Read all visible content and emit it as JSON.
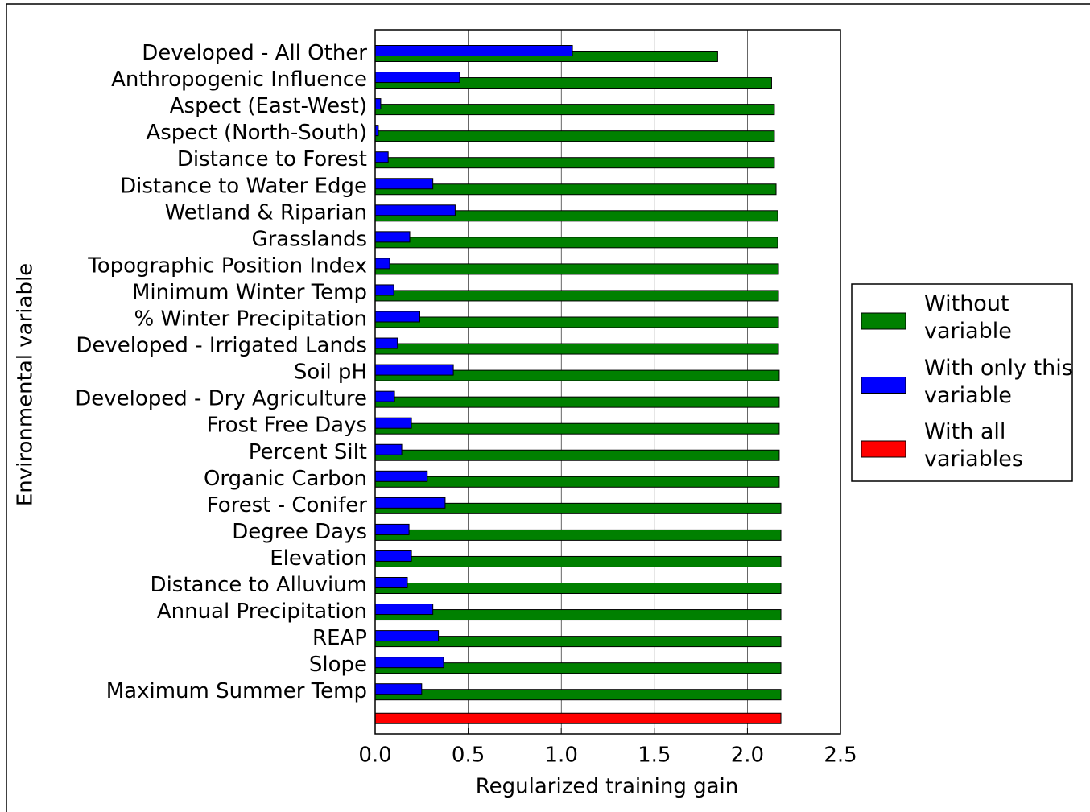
{
  "chart_data": {
    "type": "barh",
    "xlabel": "Regularized training gain",
    "ylabel": "Environmental variable",
    "categories": [
      "Developed - All Other",
      "Anthropogenic Influence",
      "Aspect (East-West)",
      "Aspect (North-South)",
      "Distance to Forest",
      "Distance to Water Edge",
      "Wetland & Riparian",
      "Grasslands",
      "Topographic Position Index",
      "Minimum Winter Temp",
      "% Winter Precipitation",
      "Developed - Irrigated Lands",
      "Soil pH",
      "Developed - Dry Agriculture",
      "Frost Free Days",
      "Percent Silt",
      "Organic Carbon",
      "Forest - Conifer",
      "Degree Days",
      "Elevation",
      "Distance to Alluvium",
      "Annual Precipitation",
      "REAP",
      "Slope",
      "Maximum Summer Temp",
      null
    ],
    "series": [
      {
        "name": "Without variable",
        "color": "#008000",
        "values": [
          1.84,
          2.13,
          2.145,
          2.145,
          2.145,
          2.154,
          2.163,
          2.163,
          2.167,
          2.167,
          2.167,
          2.167,
          2.171,
          2.171,
          2.171,
          2.171,
          2.171,
          2.18,
          2.18,
          2.18,
          2.18,
          2.18,
          2.18,
          2.18,
          2.18,
          null
        ]
      },
      {
        "name": "With only this variable",
        "color": "#0000ff",
        "values": [
          1.06,
          0.454,
          0.03,
          0.017,
          0.07,
          0.31,
          0.43,
          0.186,
          0.078,
          0.1,
          0.24,
          0.12,
          0.42,
          0.104,
          0.195,
          0.143,
          0.28,
          0.376,
          0.182,
          0.195,
          0.173,
          0.31,
          0.34,
          0.368,
          0.25,
          null
        ]
      },
      {
        "name": "With all variables",
        "color": "#ff0000",
        "values": [
          null,
          null,
          null,
          null,
          null,
          null,
          null,
          null,
          null,
          null,
          null,
          null,
          null,
          null,
          null,
          null,
          null,
          null,
          null,
          null,
          null,
          null,
          null,
          null,
          null,
          2.18
        ]
      }
    ],
    "xlim": [
      0,
      2.5
    ],
    "xticks": [
      {
        "value": 0,
        "label": "0.0"
      },
      0.5,
      {
        "value": 1,
        "label": "1.0"
      },
      1.5,
      {
        "value": 2,
        "label": "2.0"
      },
      2.5
    ],
    "grid": true,
    "legend": "right"
  }
}
